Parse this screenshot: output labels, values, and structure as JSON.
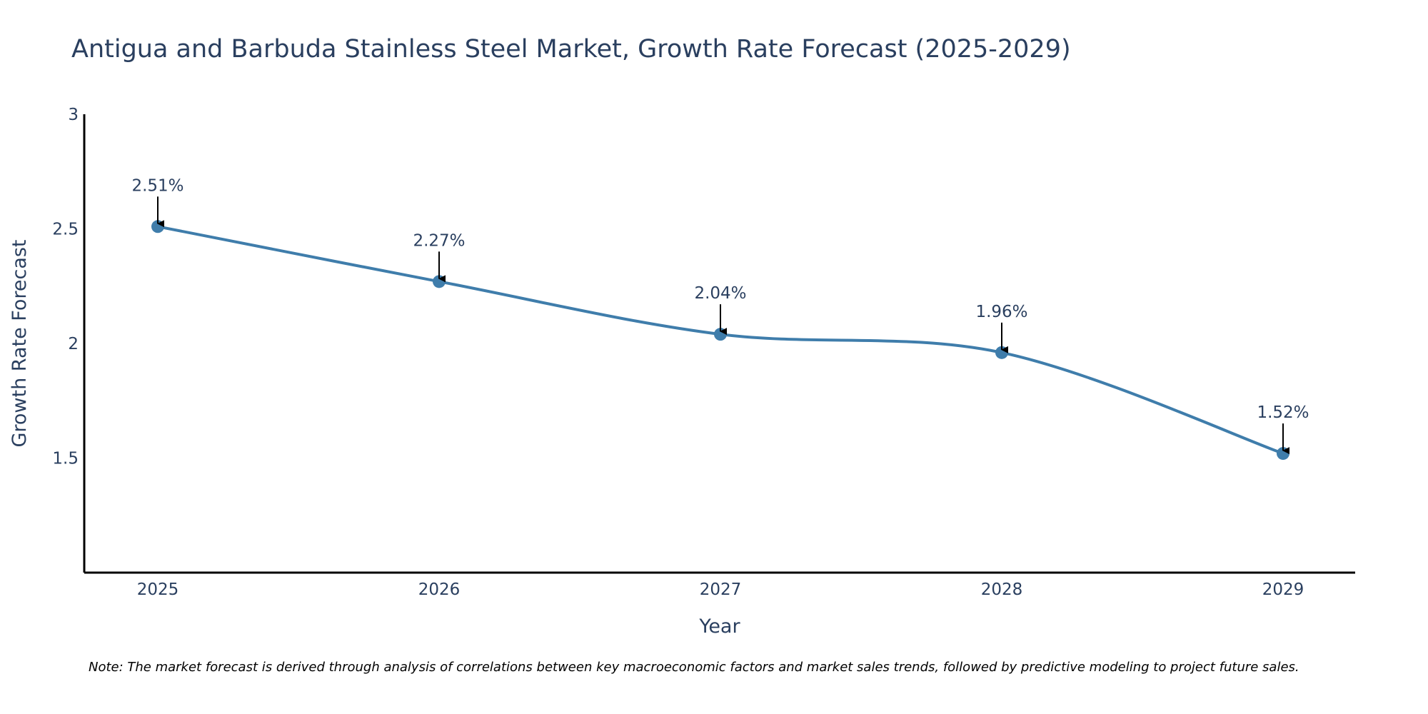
{
  "chart_data": {
    "type": "line",
    "title": "Antigua and Barbuda Stainless Steel Market, Growth Rate Forecast (2025-2029)",
    "xlabel": "Year",
    "ylabel": "Growth Rate Forecast",
    "categories": [
      "2025",
      "2026",
      "2027",
      "2028",
      "2029"
    ],
    "series": [
      {
        "name": "Growth Rate Forecast",
        "values": [
          2.51,
          2.27,
          2.04,
          1.96,
          1.52
        ],
        "labels": [
          "2.51%",
          "2.27%",
          "2.04%",
          "1.96%",
          "1.52%"
        ]
      }
    ],
    "ylim": [
      1.0,
      3.0
    ],
    "yticks": [
      1.5,
      2,
      2.5,
      3
    ],
    "ytick_labels": [
      "1.5",
      "2",
      "2.5",
      "3"
    ],
    "grid": false,
    "line_shape": "spline",
    "colors": {
      "line": "#3f7dab",
      "marker": "#3f7dab",
      "arrow": "#000000",
      "axis": "#000000"
    },
    "note": "Note: The market forecast is derived through analysis of correlations between key macroeconomic factors and market sales trends, followed by predictive modeling to project future sales."
  }
}
